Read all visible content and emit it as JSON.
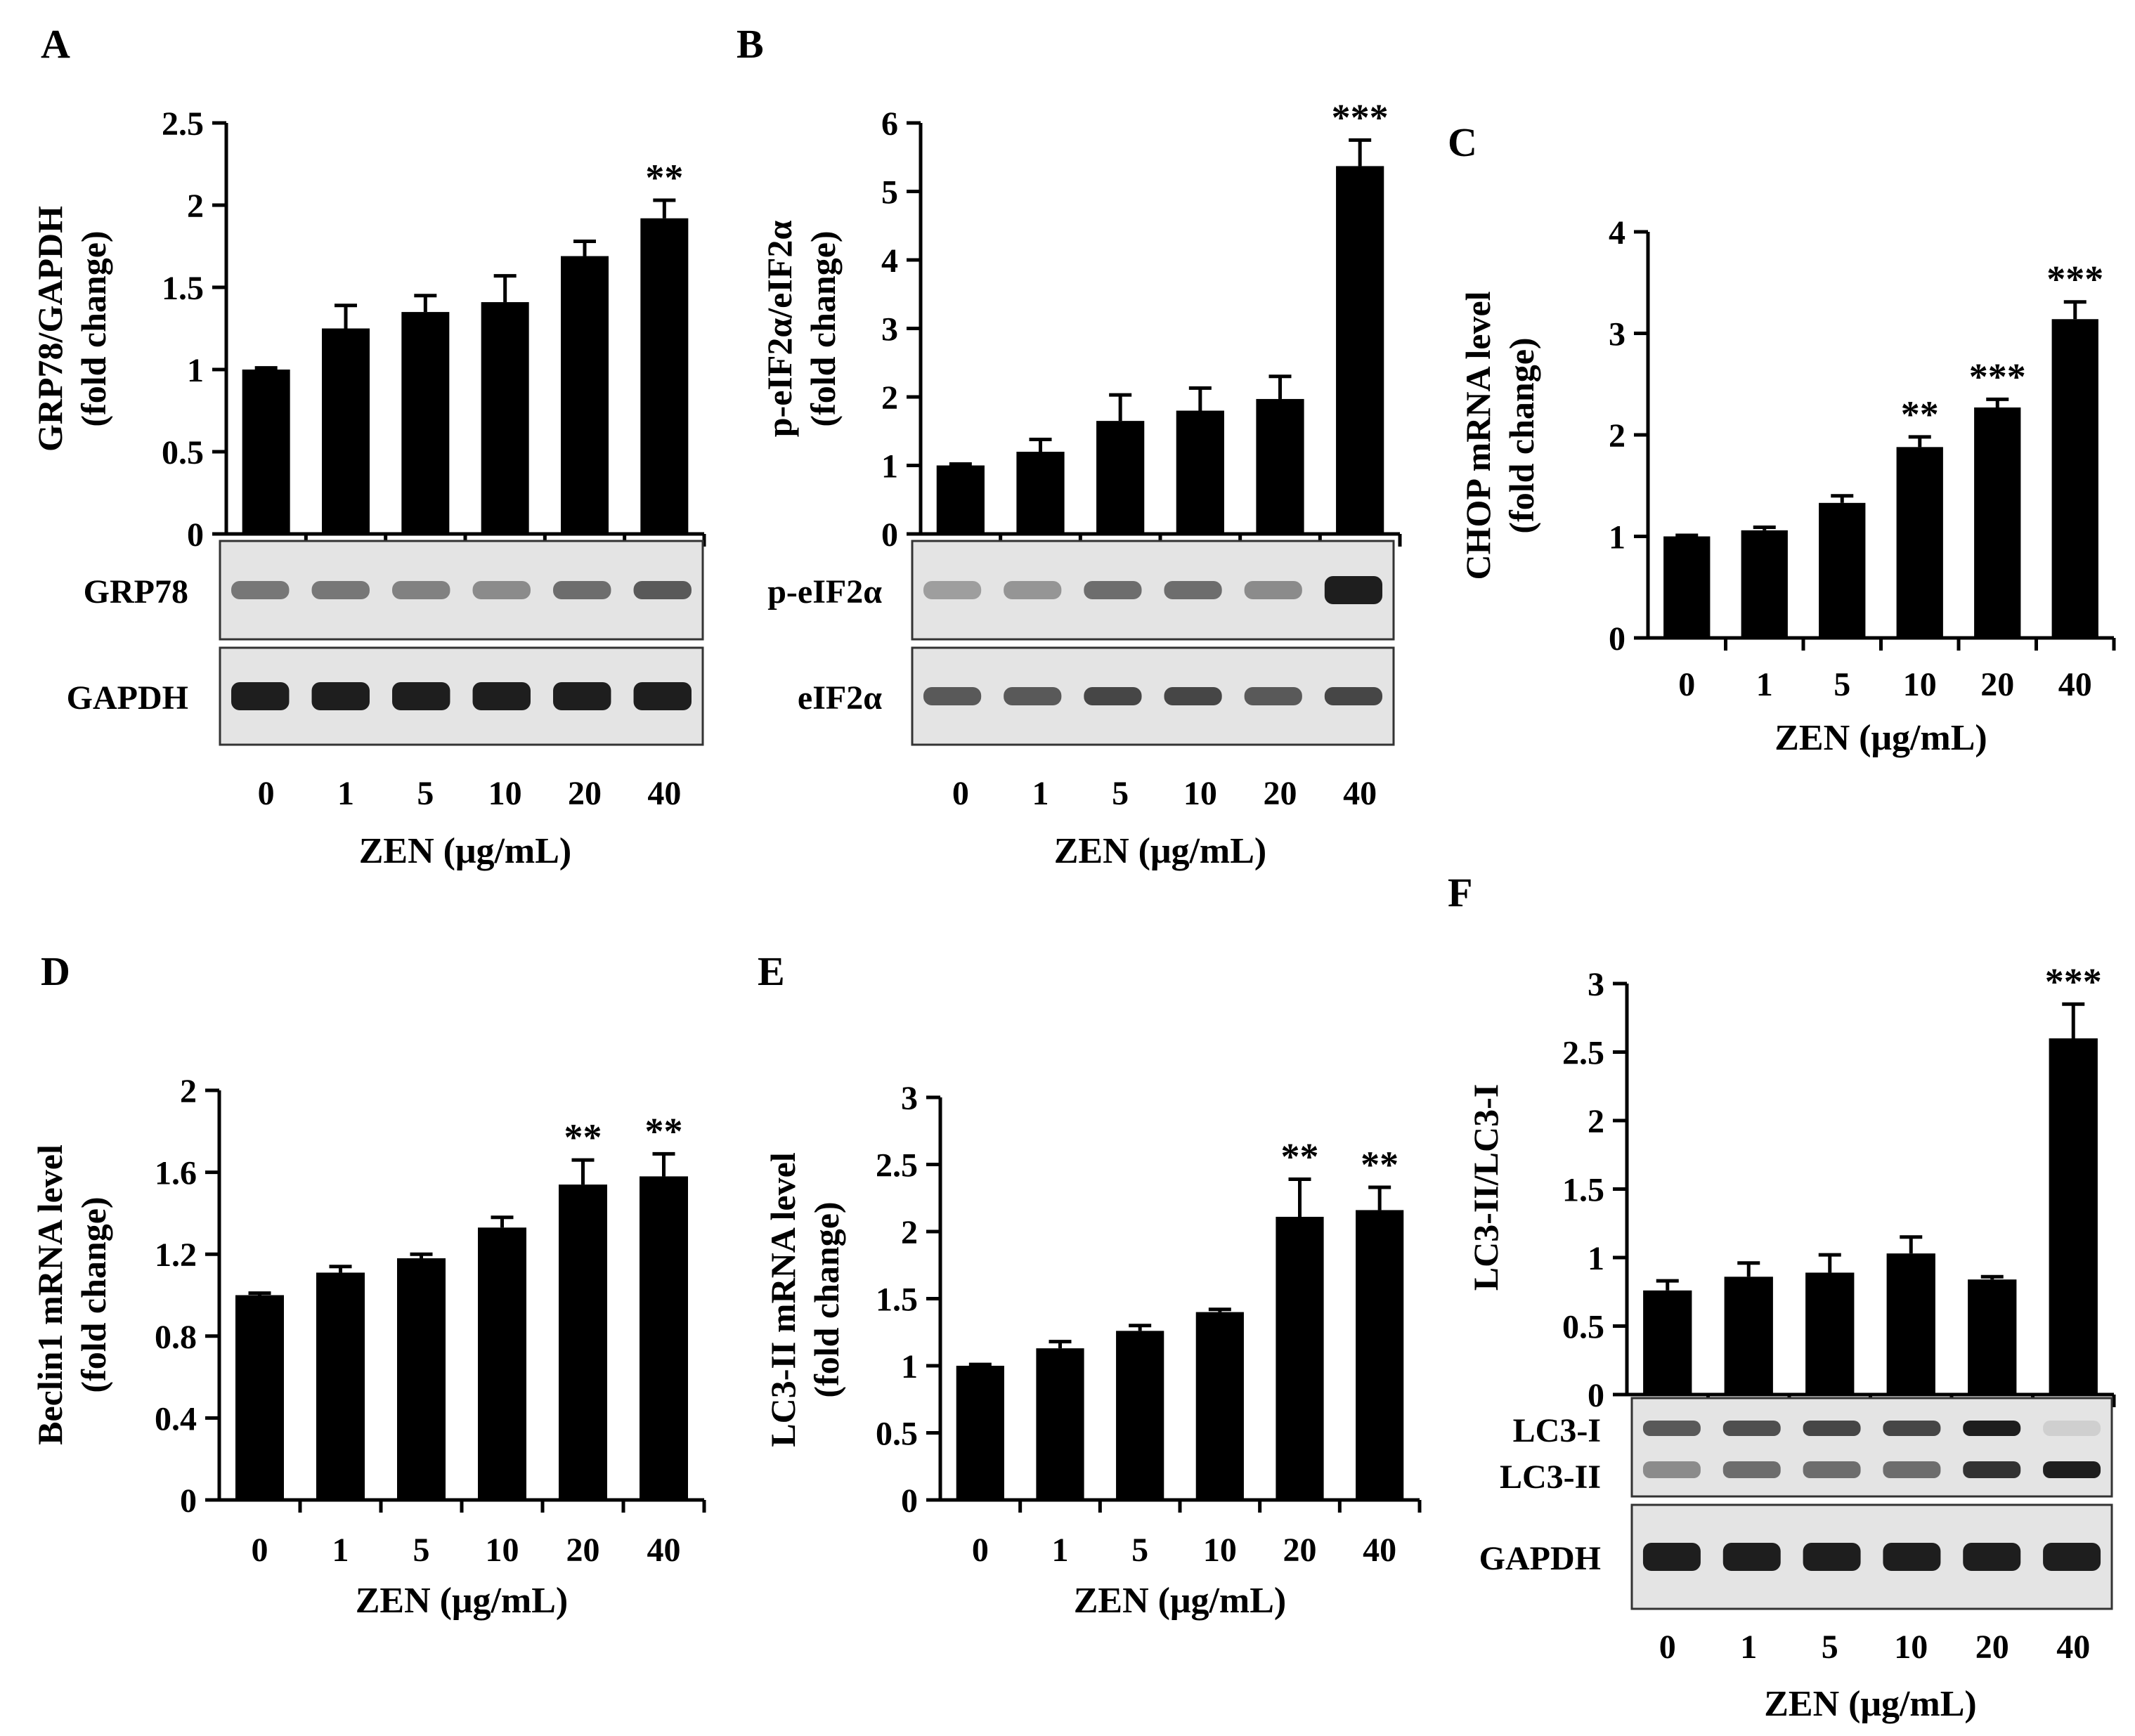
{
  "chart_data": [
    {
      "panel": "A",
      "type": "bar",
      "ylabel": [
        "GRP78/GAPDH",
        "(fold change)"
      ],
      "xlabel": "ZEN (μg/mL)",
      "categories": [
        "0",
        "1",
        "5",
        "10",
        "20",
        "40"
      ],
      "values": [
        1.0,
        1.25,
        1.35,
        1.41,
        1.69,
        1.92
      ],
      "errors": [
        0.01,
        0.14,
        0.1,
        0.16,
        0.09,
        0.11
      ],
      "significance": [
        "",
        "",
        "",
        "",
        "",
        "**"
      ],
      "ylim": [
        0,
        2.5
      ],
      "yticks": [
        0,
        0.5,
        1,
        1.5,
        2,
        2.5
      ],
      "ytick_labels": [
        "0",
        "0.5",
        "1",
        "1.5",
        "2",
        "2.5"
      ],
      "blots": [
        {
          "label": "GRP78",
          "intensity": [
            0.55,
            0.55,
            0.5,
            0.45,
            0.6,
            0.7
          ]
        },
        {
          "label": "GAPDH",
          "intensity": [
            1,
            1,
            1,
            1,
            1,
            1
          ]
        }
      ]
    },
    {
      "panel": "B",
      "type": "bar",
      "ylabel": [
        "p-eIF2α/eIF2α",
        "(fold change)"
      ],
      "xlabel": "ZEN (μg/mL)",
      "categories": [
        "0",
        "1",
        "5",
        "10",
        "20",
        "40"
      ],
      "values": [
        1.0,
        1.2,
        1.65,
        1.8,
        1.97,
        5.37
      ],
      "errors": [
        0.02,
        0.18,
        0.38,
        0.33,
        0.33,
        0.38
      ],
      "significance": [
        "",
        "",
        "",
        "",
        "",
        "***"
      ],
      "ylim": [
        0,
        6
      ],
      "yticks": [
        0,
        1,
        2,
        3,
        4,
        5,
        6
      ],
      "ytick_labels": [
        "0",
        "1",
        "2",
        "3",
        "4",
        "5",
        "6"
      ],
      "blots": [
        {
          "label": "p-eIF2α",
          "intensity": [
            0.35,
            0.4,
            0.6,
            0.6,
            0.45,
            1
          ]
        },
        {
          "label": "eIF2α",
          "intensity": [
            0.7,
            0.7,
            0.8,
            0.8,
            0.7,
            0.8
          ]
        }
      ]
    },
    {
      "panel": "C",
      "type": "bar",
      "ylabel": [
        "CHOP mRNA level",
        "(fold change)"
      ],
      "xlabel": "ZEN (μg/mL)",
      "categories": [
        "0",
        "1",
        "5",
        "10",
        "20",
        "40"
      ],
      "values": [
        1.0,
        1.06,
        1.33,
        1.88,
        2.27,
        3.14
      ],
      "errors": [
        0.01,
        0.03,
        0.07,
        0.1,
        0.08,
        0.17
      ],
      "significance": [
        "",
        "",
        "",
        "**",
        "***",
        "***"
      ],
      "ylim": [
        0,
        4
      ],
      "yticks": [
        0,
        1,
        2,
        3,
        4
      ],
      "ytick_labels": [
        "0",
        "1",
        "2",
        "3",
        "4"
      ]
    },
    {
      "panel": "D",
      "type": "bar",
      "ylabel": [
        "Beclin1 mRNA level",
        "(fold change)"
      ],
      "xlabel": "ZEN (μg/mL)",
      "categories": [
        "0",
        "1",
        "5",
        "10",
        "20",
        "40"
      ],
      "values": [
        1.0,
        1.11,
        1.18,
        1.33,
        1.54,
        1.58
      ],
      "errors": [
        0.01,
        0.03,
        0.02,
        0.05,
        0.12,
        0.11
      ],
      "significance": [
        "",
        "",
        "",
        "",
        "**",
        "**"
      ],
      "ylim": [
        0,
        2
      ],
      "yticks": [
        0,
        0.4,
        0.8,
        1.2,
        1.6,
        2
      ],
      "ytick_labels": [
        "0",
        "0.4",
        "0.8",
        "1.2",
        "1.6",
        "2"
      ]
    },
    {
      "panel": "E",
      "type": "bar",
      "ylabel": [
        "LC3-II mRNA level",
        "(fold change)"
      ],
      "xlabel": "ZEN (μg/mL)",
      "categories": [
        "0",
        "1",
        "5",
        "10",
        "20",
        "40"
      ],
      "values": [
        1.0,
        1.13,
        1.26,
        1.4,
        2.11,
        2.16
      ],
      "errors": [
        0.01,
        0.05,
        0.04,
        0.02,
        0.28,
        0.17
      ],
      "significance": [
        "",
        "",
        "",
        "",
        "**",
        "**"
      ],
      "ylim": [
        0,
        3
      ],
      "yticks": [
        0,
        0.5,
        1,
        1.5,
        2,
        2.5,
        3
      ],
      "ytick_labels": [
        "0",
        "0.5",
        "1",
        "1.5",
        "2",
        "2.5",
        "3"
      ]
    },
    {
      "panel": "F",
      "type": "bar",
      "ylabel": [
        "LC3-II/LC3-I"
      ],
      "xlabel": "ZEN (μg/mL)",
      "categories": [
        "0",
        "1",
        "5",
        "10",
        "20",
        "40"
      ],
      "values": [
        0.76,
        0.86,
        0.89,
        1.03,
        0.84,
        2.6
      ],
      "errors": [
        0.07,
        0.1,
        0.13,
        0.12,
        0.02,
        0.25
      ],
      "significance": [
        "",
        "",
        "",
        "",
        "",
        "***"
      ],
      "ylim": [
        0,
        3
      ],
      "yticks": [
        0,
        0.5,
        1,
        1.5,
        2,
        2.5,
        3
      ],
      "ytick_labels": [
        "0",
        "0.5",
        "1",
        "1.5",
        "2",
        "2.5",
        "3"
      ],
      "blots": [
        {
          "label": "LC3-I",
          "label2": "LC3-II",
          "intensity": [
            0.7,
            0.75,
            0.8,
            0.8,
            1,
            0.1
          ],
          "intensity2": [
            0.45,
            0.6,
            0.6,
            0.6,
            0.9,
            1
          ]
        },
        {
          "label": "GAPDH",
          "intensity": [
            1,
            1,
            1,
            1,
            1,
            1
          ]
        }
      ]
    }
  ]
}
